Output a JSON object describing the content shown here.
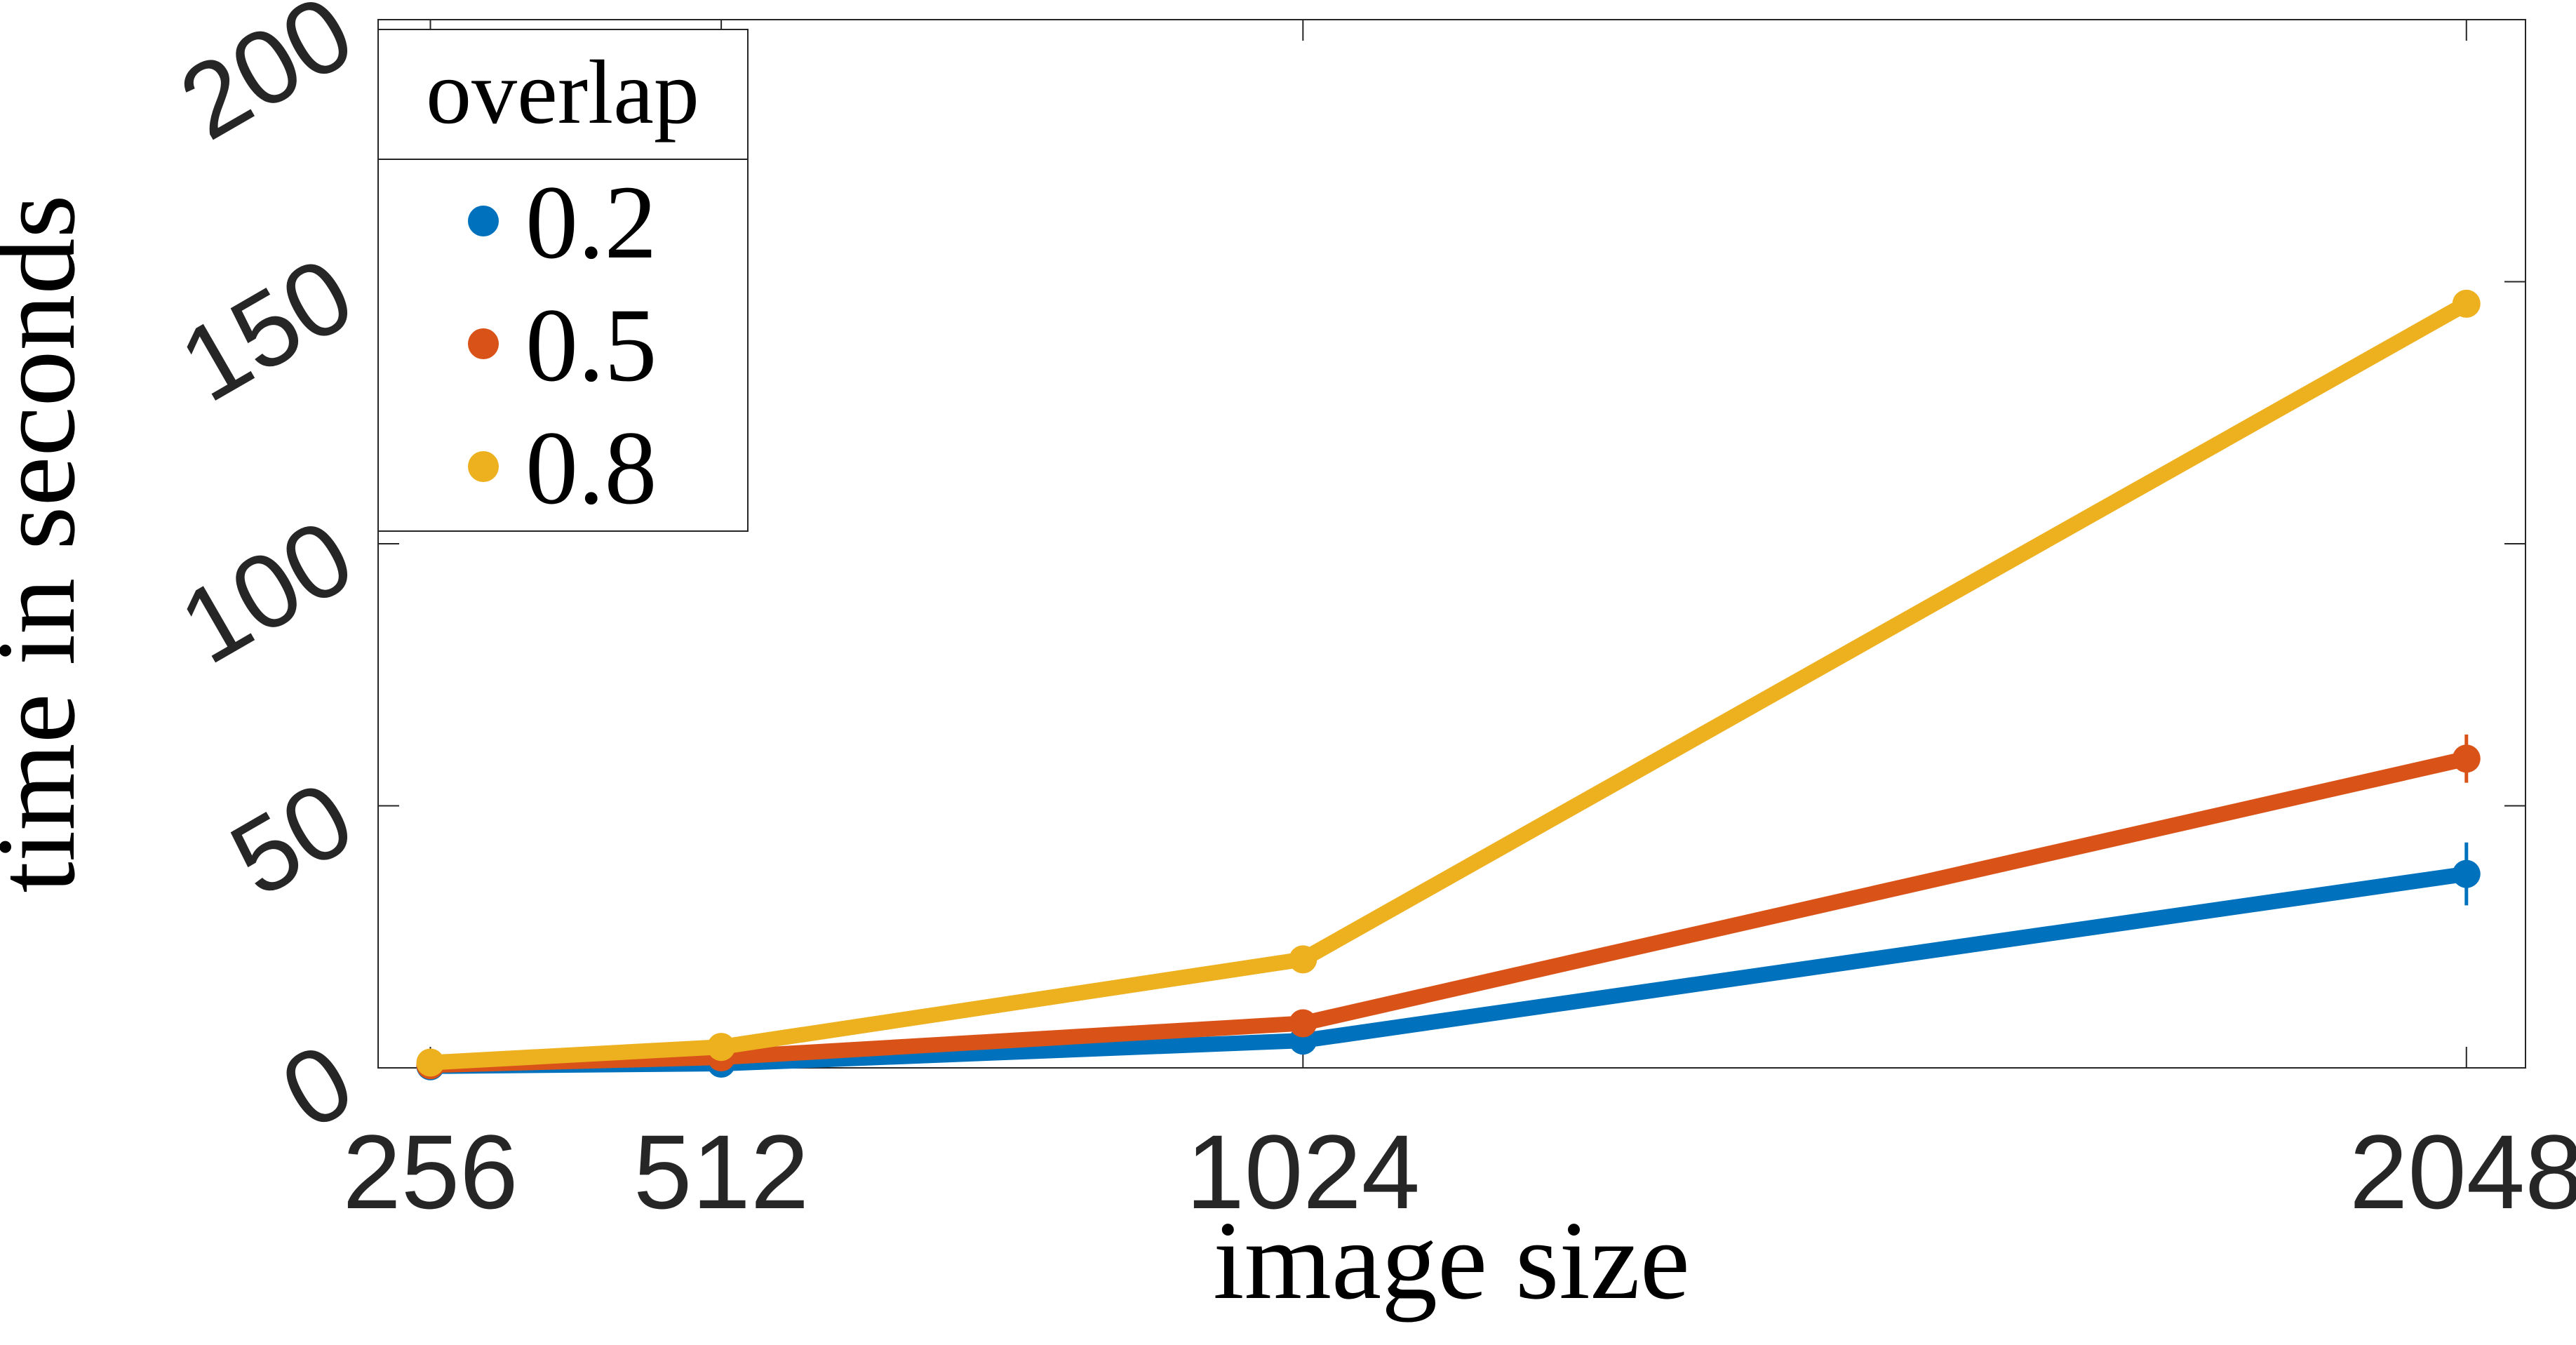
{
  "chart_data": {
    "type": "line",
    "x_label": "image size",
    "y_label": "time in seconds",
    "x": [
      256,
      512,
      1024,
      2048
    ],
    "xlim": [
      210,
      2100
    ],
    "xticks": [
      256,
      512,
      1024,
      2048
    ],
    "ylim": [
      0,
      200
    ],
    "yticks": [
      0,
      50,
      100,
      150,
      200
    ],
    "grid": false,
    "legend_title": "overlap",
    "legend_position": "upper-left",
    "series": [
      {
        "name": "0.2",
        "color": "#0072BD",
        "values": [
          0.3,
          0.8,
          5.2,
          37
        ],
        "errors": [
          0.1,
          0.1,
          0.4,
          6
        ]
      },
      {
        "name": "0.5",
        "color": "#D95319",
        "values": [
          0.5,
          2,
          8.5,
          59
        ],
        "errors": [
          0.1,
          0.1,
          0.5,
          4.6
        ]
      },
      {
        "name": "0.8",
        "color": "#EDB120",
        "values": [
          1,
          4,
          20.7,
          145.8
        ],
        "errors": [
          0.1,
          0.2,
          0.6,
          1.5
        ]
      }
    ]
  }
}
